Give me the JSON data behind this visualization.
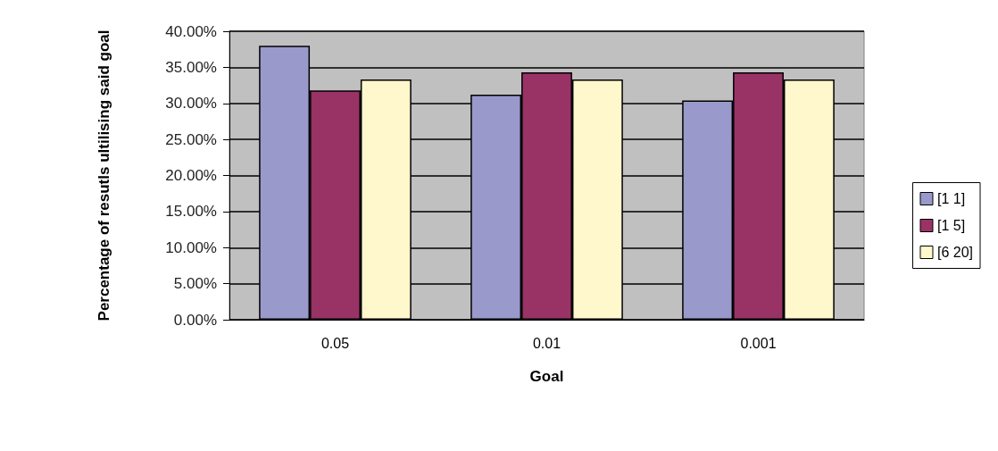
{
  "chart_data": {
    "type": "bar",
    "xlabel": "Goal",
    "ylabel": "Percentage of resutls ultilising said goal",
    "categories": [
      "0.05",
      "0.01",
      "0.001"
    ],
    "series": [
      {
        "name": "[1 1]",
        "color": "#9999cc",
        "values": [
          38.0,
          31.2,
          30.4
        ]
      },
      {
        "name": "[1 5]",
        "color": "#993366",
        "values": [
          31.8,
          34.3,
          34.3
        ]
      },
      {
        "name": "[6 20]",
        "color": "#fff8cc",
        "values": [
          33.3,
          33.3,
          33.3
        ]
      }
    ],
    "ylim": [
      0,
      40
    ],
    "yticks": [
      {
        "value": 0,
        "label": "0.00%"
      },
      {
        "value": 5,
        "label": "5.00%"
      },
      {
        "value": 10,
        "label": "10.00%"
      },
      {
        "value": 15,
        "label": "15.00%"
      },
      {
        "value": 20,
        "label": "20.00%"
      },
      {
        "value": 25,
        "label": "25.00%"
      },
      {
        "value": 30,
        "label": "30.00%"
      },
      {
        "value": 35,
        "label": "35.00%"
      },
      {
        "value": 40,
        "label": "40.00%"
      }
    ],
    "grid": "y",
    "legend": "right"
  }
}
